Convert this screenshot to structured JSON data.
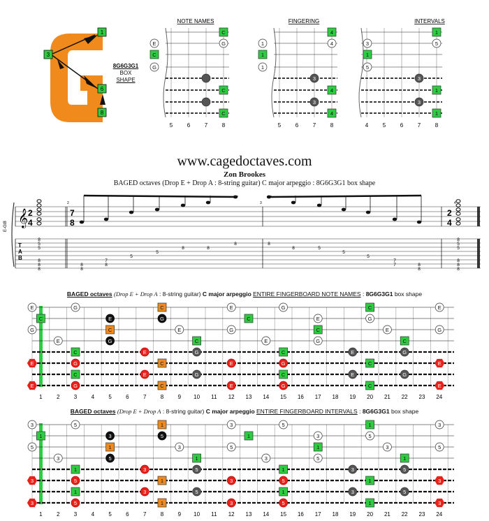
{
  "header": {
    "shape_code": "8G6G3G1",
    "box_label_1": "BOX",
    "box_label_2": "SHAPE",
    "g_letter": "G",
    "g_markers": [
      "1",
      "3",
      "6",
      "8"
    ],
    "diagrams": [
      {
        "title": "NOTE NAMES",
        "fret_numbers": [
          "5",
          "6",
          "7",
          "8"
        ]
      },
      {
        "title": "FINGERING",
        "fret_numbers": [
          "5",
          "6",
          "7",
          "8"
        ]
      },
      {
        "title": "INTERVALS",
        "fret_numbers": [
          "4",
          "5",
          "6",
          "7",
          "8"
        ]
      }
    ]
  },
  "site": "www.cagedoctaves.com",
  "author": "Zon Brookes",
  "subtitle": "BAGED octaves (Drop E + Drop A : 8-string guitar) C major arpeggio : 8G6G3G1 box shape",
  "tab": {
    "tuning_label": "E-Gt8",
    "time_sig_start": [
      "2",
      "4"
    ],
    "time_sig_mid": [
      "7",
      "8"
    ],
    "time_sig_end": [
      "2",
      "4"
    ],
    "tab_letters": [
      "T",
      "A",
      "B"
    ],
    "measure_numbers": [
      "2",
      "3",
      "4"
    ],
    "chord1": [
      "8",
      "5",
      "5",
      "8",
      "8",
      "8"
    ],
    "measure2_frets": [
      [
        "8",
        "8"
      ],
      [
        "7",
        "7"
      ],
      [
        "5"
      ],
      [
        "5"
      ],
      [
        "8"
      ],
      [
        "8"
      ]
    ],
    "measure3_frets": [
      [
        "8"
      ],
      [
        "8"
      ],
      [
        "5"
      ],
      [
        "5"
      ],
      [
        "5"
      ],
      [
        "7",
        "7"
      ],
      [
        "8",
        "8"
      ]
    ],
    "chord_end": [
      "8",
      "5",
      "5",
      "8",
      "8",
      "8"
    ]
  },
  "board1": {
    "title_parts": [
      "BAGED octaves",
      "(Drop E + Drop A",
      ": 8-string guitar)",
      "C major arpeggio",
      "ENTIRE FINGERBOARD  NOTE NAMES",
      ":",
      "8G6G3G1",
      "box shape"
    ]
  },
  "board2": {
    "title_parts": [
      "BAGED octaves",
      "(Drop E + Drop A",
      ": 8-string guitar)",
      "C major arpeggio",
      "ENTIRE FINGERBOARD  INTERVALS",
      ":",
      "8G6G3G1",
      "box shape"
    ]
  },
  "fret_numbers": [
    "1",
    "2",
    "3",
    "4",
    "5",
    "6",
    "7",
    "8",
    "9",
    "10",
    "11",
    "12",
    "13",
    "14",
    "15",
    "16",
    "17",
    "18",
    "19",
    "20",
    "21",
    "22",
    "23",
    "24"
  ],
  "colors": {
    "green": "#2ecc40",
    "orange": "#f08a1c",
    "red": "#e8211a",
    "grey": "#555555",
    "black": "#111111"
  }
}
